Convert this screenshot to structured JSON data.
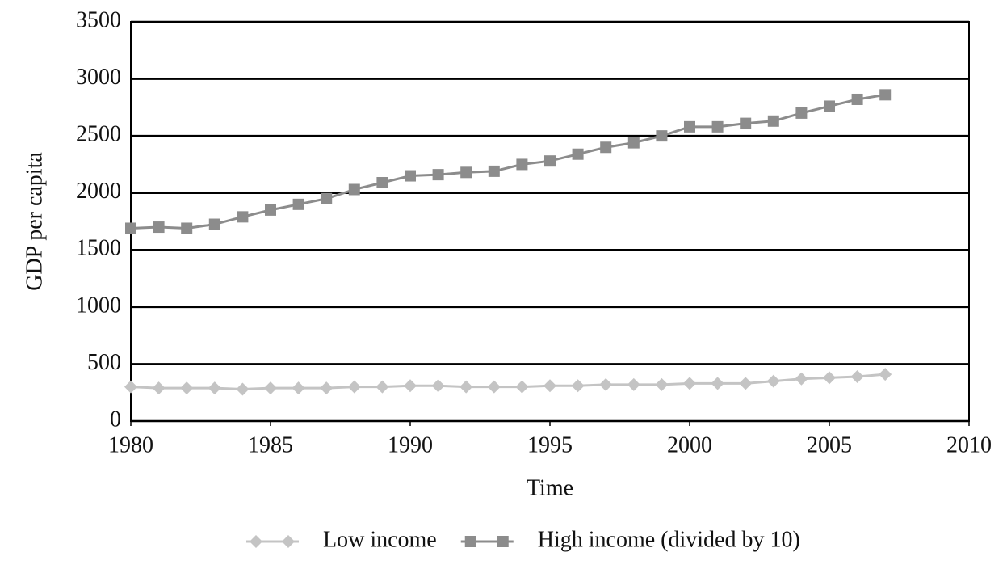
{
  "chart_data": {
    "type": "line",
    "x_label": "Time",
    "y_label": "GDP per capita",
    "x": [
      1980,
      1981,
      1982,
      1983,
      1984,
      1985,
      1986,
      1987,
      1988,
      1989,
      1990,
      1991,
      1992,
      1993,
      1994,
      1995,
      1996,
      1997,
      1998,
      1999,
      2000,
      2001,
      2002,
      2003,
      2004,
      2005,
      2006,
      2007
    ],
    "series": [
      {
        "name": "Low income",
        "color": "#c4c4c4",
        "marker": "diamond",
        "values": [
          300,
          290,
          290,
          290,
          280,
          290,
          290,
          290,
          300,
          300,
          310,
          310,
          300,
          300,
          300,
          310,
          310,
          320,
          320,
          320,
          330,
          330,
          330,
          350,
          370,
          380,
          390,
          410
        ]
      },
      {
        "name": "High income (divided by 10)",
        "color": "#8c8c8c",
        "marker": "square",
        "values": [
          1690,
          1700,
          1690,
          1725,
          1790,
          1850,
          1900,
          1950,
          2030,
          2090,
          2150,
          2160,
          2180,
          2190,
          2250,
          2280,
          2340,
          2400,
          2440,
          2500,
          2580,
          2580,
          2610,
          2630,
          2700,
          2760,
          2820,
          2860
        ]
      }
    ],
    "xlim": [
      1980,
      2010
    ],
    "xticks": [
      1980,
      1985,
      1990,
      1995,
      2000,
      2005,
      2010
    ],
    "ylim": [
      0,
      3500
    ],
    "yticks": [
      0,
      500,
      1000,
      1500,
      2000,
      2500,
      3000,
      3500
    ],
    "grid": true,
    "legend": "bottom"
  }
}
